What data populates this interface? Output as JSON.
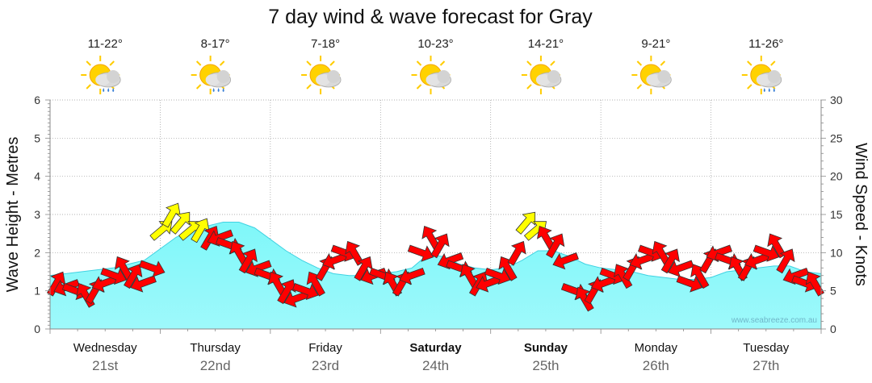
{
  "chart_data": {
    "type": "area",
    "title": "7 day wind & wave forecast for Gray",
    "ylabel_left": "Wave Height - Metres",
    "ylabel_right": "Wind Speed - Knots",
    "ylim_left": [
      0,
      6
    ],
    "ylim_right": [
      0,
      30
    ],
    "yticks_left": [
      "0",
      "1",
      "2",
      "3",
      "4",
      "5",
      "6"
    ],
    "yticks_right": [
      "0",
      "5",
      "10",
      "15",
      "20",
      "25",
      "30"
    ],
    "grid": "dotted",
    "days": [
      {
        "name": "Wednesday",
        "date": "21st",
        "bold": false,
        "temp": "11-22°",
        "icon": "sun-cloud-showers-icon"
      },
      {
        "name": "Thursday",
        "date": "22nd",
        "bold": false,
        "temp": "8-17°",
        "icon": "sun-cloud-showers-icon"
      },
      {
        "name": "Friday",
        "date": "23rd",
        "bold": false,
        "temp": "7-18°",
        "icon": "sun-cloud-icon"
      },
      {
        "name": "Saturday",
        "date": "24th",
        "bold": true,
        "temp": "10-23°",
        "icon": "sun-cloud-icon"
      },
      {
        "name": "Sunday",
        "date": "25th",
        "bold": true,
        "temp": "14-21°",
        "icon": "sun-cloud-icon"
      },
      {
        "name": "Monday",
        "date": "26th",
        "bold": false,
        "temp": "9-21°",
        "icon": "sun-cloud-icon"
      },
      {
        "name": "Tuesday",
        "date": "27th",
        "bold": false,
        "temp": "11-26°",
        "icon": "sun-cloud-showers-icon"
      }
    ],
    "wave_height_m": [
      1.4,
      1.45,
      1.5,
      1.55,
      1.6,
      1.7,
      1.8,
      2.1,
      2.4,
      2.6,
      2.7,
      2.8,
      2.8,
      2.65,
      2.35,
      2.05,
      1.8,
      1.6,
      1.45,
      1.4,
      1.4,
      1.45,
      1.5,
      1.6,
      1.95,
      1.9,
      1.7,
      1.6,
      1.55,
      1.6,
      1.8,
      2.05,
      2.05,
      1.9,
      1.7,
      1.6,
      1.55,
      1.5,
      1.4,
      1.35,
      1.3,
      1.3,
      1.35,
      1.5,
      1.55,
      1.6,
      1.65,
      1.65,
      1.5,
      1.45
    ],
    "wind_speed_knots": [
      6,
      5.5,
      5,
      4.5,
      5,
      6,
      7,
      8,
      7,
      6,
      8,
      13,
      15,
      14,
      13,
      13,
      12,
      12,
      11,
      10,
      9,
      8,
      7,
      6,
      5,
      4,
      5,
      6,
      8,
      9,
      10,
      10,
      8,
      7,
      7,
      6,
      6,
      7,
      10,
      12,
      11,
      9,
      8,
      7,
      6,
      6,
      7,
      8,
      10,
      14,
      13,
      12,
      11,
      9,
      5,
      4,
      5,
      6,
      7,
      7,
      8,
      9,
      10,
      10,
      9,
      8,
      6,
      7,
      9,
      10,
      9,
      8,
      8,
      9,
      10,
      11,
      9,
      7,
      6,
      6
    ]
  },
  "watermark": "www.seabreeze.com.au",
  "colors": {
    "wave_fill": "#76f5f7",
    "wave_stroke": "#3fd2e2",
    "wind_arrow_high": "#ffff00",
    "wind_arrow": "#ff0000",
    "grid": "#999999"
  }
}
